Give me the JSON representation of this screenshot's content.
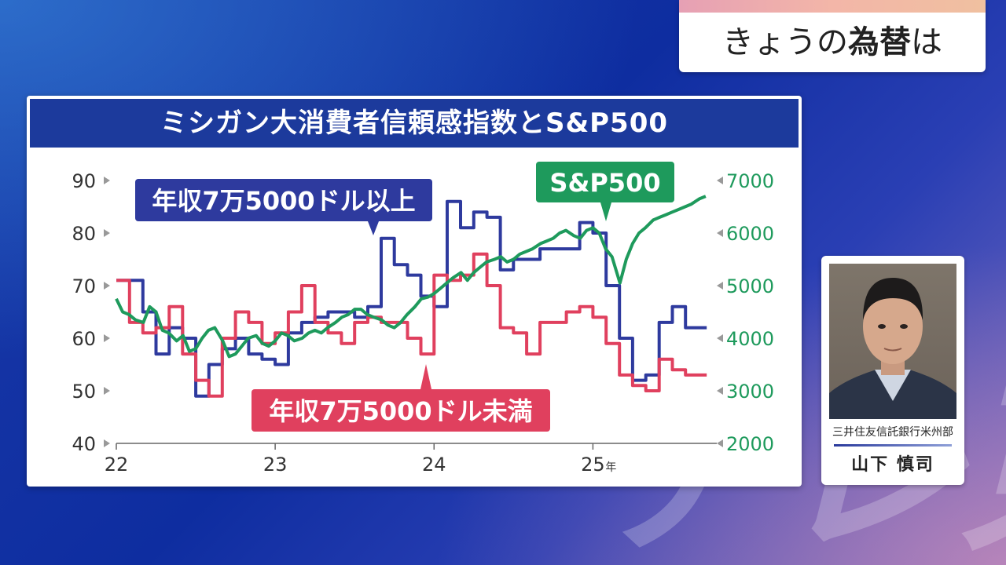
{
  "topic": {
    "normal1": "きょうの",
    "bold": "為替",
    "normal2": "は"
  },
  "chart_data": {
    "type": "line",
    "title": "ミシガン大消費者信頼感指数とS&P500",
    "x_ticks": [
      "22",
      "23",
      "24",
      "25"
    ],
    "x_unit": "年",
    "x_range": [
      2022.0,
      2025.75
    ],
    "y_left": {
      "ticks": [
        40,
        50,
        60,
        70,
        80,
        90
      ],
      "range": [
        40,
        90
      ]
    },
    "y_right": {
      "ticks": [
        2000,
        3000,
        4000,
        5000,
        6000,
        7000
      ],
      "range": [
        2000,
        7000
      ]
    },
    "series": [
      {
        "name": "年収7万5000ドル以上",
        "axis": "left",
        "color": "#2e3a9e",
        "step": true,
        "points": [
          [
            2022.0,
            71
          ],
          [
            2022.083,
            71
          ],
          [
            2022.167,
            65
          ],
          [
            2022.25,
            57
          ],
          [
            2022.333,
            62
          ],
          [
            2022.417,
            60
          ],
          [
            2022.5,
            49
          ],
          [
            2022.583,
            55
          ],
          [
            2022.667,
            58
          ],
          [
            2022.75,
            60
          ],
          [
            2022.833,
            57
          ],
          [
            2022.917,
            56
          ],
          [
            2023.0,
            55
          ],
          [
            2023.083,
            61
          ],
          [
            2023.167,
            63
          ],
          [
            2023.25,
            64
          ],
          [
            2023.333,
            65
          ],
          [
            2023.417,
            65
          ],
          [
            2023.5,
            64
          ],
          [
            2023.583,
            66
          ],
          [
            2023.667,
            79
          ],
          [
            2023.75,
            74
          ],
          [
            2023.833,
            72
          ],
          [
            2023.917,
            68
          ],
          [
            2024.0,
            66
          ],
          [
            2024.083,
            86
          ],
          [
            2024.167,
            81
          ],
          [
            2024.25,
            84
          ],
          [
            2024.333,
            83
          ],
          [
            2024.417,
            73
          ],
          [
            2024.5,
            75
          ],
          [
            2024.583,
            75
          ],
          [
            2024.667,
            77
          ],
          [
            2024.75,
            77
          ],
          [
            2024.833,
            77
          ],
          [
            2024.917,
            82
          ],
          [
            2025.0,
            80
          ],
          [
            2025.083,
            70
          ],
          [
            2025.167,
            60
          ],
          [
            2025.25,
            52
          ],
          [
            2025.333,
            53
          ],
          [
            2025.417,
            63
          ],
          [
            2025.5,
            66
          ],
          [
            2025.583,
            62
          ],
          [
            2025.667,
            62
          ]
        ]
      },
      {
        "name": "年収7万5000ドル未満",
        "axis": "left",
        "color": "#e0405e",
        "step": true,
        "points": [
          [
            2022.0,
            71
          ],
          [
            2022.083,
            63
          ],
          [
            2022.167,
            61
          ],
          [
            2022.25,
            62
          ],
          [
            2022.333,
            66
          ],
          [
            2022.417,
            57
          ],
          [
            2022.5,
            52
          ],
          [
            2022.583,
            49
          ],
          [
            2022.667,
            60
          ],
          [
            2022.75,
            65
          ],
          [
            2022.833,
            63
          ],
          [
            2022.917,
            59
          ],
          [
            2023.0,
            61
          ],
          [
            2023.083,
            65
          ],
          [
            2023.167,
            70
          ],
          [
            2023.25,
            63
          ],
          [
            2023.333,
            61
          ],
          [
            2023.417,
            59
          ],
          [
            2023.5,
            63
          ],
          [
            2023.583,
            64
          ],
          [
            2023.667,
            63
          ],
          [
            2023.75,
            63
          ],
          [
            2023.833,
            60
          ],
          [
            2023.917,
            57
          ],
          [
            2024.0,
            72
          ],
          [
            2024.083,
            71
          ],
          [
            2024.167,
            72
          ],
          [
            2024.25,
            76
          ],
          [
            2024.333,
            70
          ],
          [
            2024.417,
            62
          ],
          [
            2024.5,
            61
          ],
          [
            2024.583,
            57
          ],
          [
            2024.667,
            63
          ],
          [
            2024.75,
            63
          ],
          [
            2024.833,
            65
          ],
          [
            2024.917,
            66
          ],
          [
            2025.0,
            64
          ],
          [
            2025.083,
            59
          ],
          [
            2025.167,
            53
          ],
          [
            2025.25,
            51
          ],
          [
            2025.333,
            50
          ],
          [
            2025.417,
            56
          ],
          [
            2025.5,
            54
          ],
          [
            2025.583,
            53
          ],
          [
            2025.667,
            53
          ]
        ]
      },
      {
        "name": "S&P500",
        "axis": "right",
        "color": "#1e9a5c",
        "step": false,
        "points": [
          [
            2022.0,
            4750
          ],
          [
            2022.04,
            4500
          ],
          [
            2022.08,
            4450
          ],
          [
            2022.12,
            4350
          ],
          [
            2022.17,
            4300
          ],
          [
            2022.21,
            4600
          ],
          [
            2022.25,
            4500
          ],
          [
            2022.29,
            4150
          ],
          [
            2022.33,
            4100
          ],
          [
            2022.38,
            3950
          ],
          [
            2022.42,
            4050
          ],
          [
            2022.46,
            3750
          ],
          [
            2022.5,
            3800
          ],
          [
            2022.54,
            4000
          ],
          [
            2022.58,
            4150
          ],
          [
            2022.62,
            4200
          ],
          [
            2022.67,
            3950
          ],
          [
            2022.71,
            3650
          ],
          [
            2022.75,
            3700
          ],
          [
            2022.79,
            3850
          ],
          [
            2022.83,
            4000
          ],
          [
            2022.88,
            4050
          ],
          [
            2022.92,
            3900
          ],
          [
            2022.96,
            3850
          ],
          [
            2023.0,
            3950
          ],
          [
            2023.04,
            4100
          ],
          [
            2023.08,
            4050
          ],
          [
            2023.12,
            3950
          ],
          [
            2023.17,
            4000
          ],
          [
            2023.21,
            4100
          ],
          [
            2023.25,
            4150
          ],
          [
            2023.29,
            4100
          ],
          [
            2023.33,
            4200
          ],
          [
            2023.38,
            4300
          ],
          [
            2023.42,
            4400
          ],
          [
            2023.46,
            4450
          ],
          [
            2023.5,
            4550
          ],
          [
            2023.54,
            4550
          ],
          [
            2023.58,
            4450
          ],
          [
            2023.62,
            4400
          ],
          [
            2023.67,
            4350
          ],
          [
            2023.71,
            4250
          ],
          [
            2023.75,
            4200
          ],
          [
            2023.79,
            4300
          ],
          [
            2023.83,
            4450
          ],
          [
            2023.88,
            4600
          ],
          [
            2023.92,
            4750
          ],
          [
            2023.96,
            4780
          ],
          [
            2024.0,
            4850
          ],
          [
            2024.04,
            4950
          ],
          [
            2024.08,
            5050
          ],
          [
            2024.12,
            5150
          ],
          [
            2024.17,
            5250
          ],
          [
            2024.21,
            5100
          ],
          [
            2024.25,
            5250
          ],
          [
            2024.29,
            5350
          ],
          [
            2024.33,
            5450
          ],
          [
            2024.38,
            5500
          ],
          [
            2024.42,
            5550
          ],
          [
            2024.46,
            5450
          ],
          [
            2024.5,
            5500
          ],
          [
            2024.54,
            5600
          ],
          [
            2024.58,
            5650
          ],
          [
            2024.62,
            5700
          ],
          [
            2024.67,
            5800
          ],
          [
            2024.71,
            5850
          ],
          [
            2024.75,
            5900
          ],
          [
            2024.79,
            6000
          ],
          [
            2024.83,
            6050
          ],
          [
            2024.88,
            5950
          ],
          [
            2024.92,
            5900
          ],
          [
            2024.96,
            6050
          ],
          [
            2025.0,
            6100
          ],
          [
            2025.04,
            6000
          ],
          [
            2025.08,
            5700
          ],
          [
            2025.12,
            5550
          ],
          [
            2025.17,
            5050
          ],
          [
            2025.21,
            5500
          ],
          [
            2025.25,
            5800
          ],
          [
            2025.29,
            6000
          ],
          [
            2025.33,
            6100
          ],
          [
            2025.38,
            6250
          ],
          [
            2025.42,
            6300
          ],
          [
            2025.46,
            6350
          ],
          [
            2025.5,
            6400
          ],
          [
            2025.54,
            6450
          ],
          [
            2025.58,
            6500
          ],
          [
            2025.62,
            6550
          ],
          [
            2025.67,
            6650
          ],
          [
            2025.71,
            6700
          ]
        ]
      }
    ],
    "labels": {
      "upper_income": "年収7万5000ドル以上",
      "lower_income": "年収7万5000ドル未満",
      "sp500": "S&P500"
    }
  },
  "person": {
    "affiliation": "三井住友信託銀行米州部",
    "name": "山下 慎司"
  },
  "watermark": "テレ東",
  "colors": {
    "title_bar": "#1c3a9c",
    "upper_income": "#2e3a9e",
    "lower_income": "#e0405e",
    "sp500": "#1e9a5c",
    "axis_text": "#333333",
    "grid": "#dddddd"
  }
}
